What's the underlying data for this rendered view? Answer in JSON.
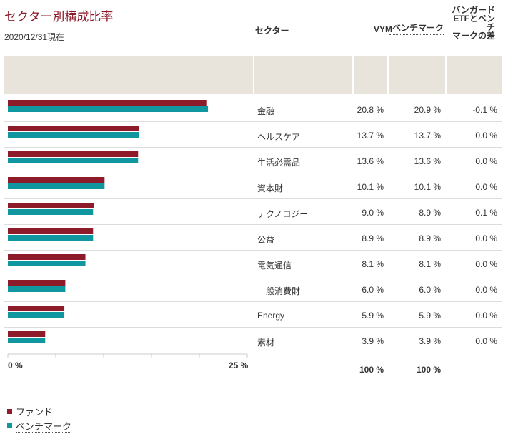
{
  "header": {
    "title": "セクター別構成比率",
    "as_of": "2020/12/31現在"
  },
  "table": {
    "columns": {
      "sector": "セクター",
      "fund": "VYM",
      "benchmark": "ベンチマーク",
      "diff": "バンガードETFとベンチマークの差"
    },
    "diff_lines": [
      "バンガード",
      "ETFとベンチ",
      "マークの差"
    ],
    "rows": [
      {
        "sector": "金融",
        "fund": "20.8 %",
        "benchmark": "20.9 %",
        "diff": "-0.1 %"
      },
      {
        "sector": "ヘルスケア",
        "fund": "13.7 %",
        "benchmark": "13.7 %",
        "diff": "0.0 %"
      },
      {
        "sector": "生活必需品",
        "fund": "13.6 %",
        "benchmark": "13.6 %",
        "diff": "0.0 %"
      },
      {
        "sector": "資本財",
        "fund": "10.1 %",
        "benchmark": "10.1 %",
        "diff": "0.0 %"
      },
      {
        "sector": "テクノロジー",
        "fund": "9.0 %",
        "benchmark": "8.9 %",
        "diff": "0.1 %"
      },
      {
        "sector": "公益",
        "fund": "8.9 %",
        "benchmark": "8.9 %",
        "diff": "0.0 %"
      },
      {
        "sector": "電気通信",
        "fund": "8.1 %",
        "benchmark": "8.1 %",
        "diff": "0.0 %"
      },
      {
        "sector": "一般消費財",
        "fund": "6.0 %",
        "benchmark": "6.0 %",
        "diff": "0.0 %"
      },
      {
        "sector": "Energy",
        "fund": "5.9 %",
        "benchmark": "5.9 %",
        "diff": "0.0 %"
      },
      {
        "sector": "素材",
        "fund": "3.9 %",
        "benchmark": "3.9 %",
        "diff": "0.0 %"
      }
    ],
    "totals": {
      "fund": "100 %",
      "benchmark": "100 %"
    }
  },
  "legend": {
    "fund": "ファンド",
    "benchmark": "ベンチマーク"
  },
  "colors": {
    "fund": "#8d1b2a",
    "benchmark": "#10969f",
    "header_bg": "#e8e4db"
  },
  "chart_data": {
    "type": "bar",
    "orientation": "horizontal",
    "categories": [
      "金融",
      "ヘルスケア",
      "生活必需品",
      "資本財",
      "テクノロジー",
      "公益",
      "電気通信",
      "一般消費財",
      "Energy",
      "素材"
    ],
    "series": [
      {
        "name": "ファンド",
        "values": [
          20.8,
          13.7,
          13.6,
          10.1,
          9.0,
          8.9,
          8.1,
          6.0,
          5.9,
          3.9
        ]
      },
      {
        "name": "ベンチマーク",
        "values": [
          20.9,
          13.7,
          13.6,
          10.1,
          8.9,
          8.9,
          8.1,
          6.0,
          5.9,
          3.9
        ]
      }
    ],
    "xlim": [
      0,
      25
    ],
    "x_tick_labels": [
      "0 %",
      "25 %"
    ],
    "legend_position": "bottom-left"
  }
}
